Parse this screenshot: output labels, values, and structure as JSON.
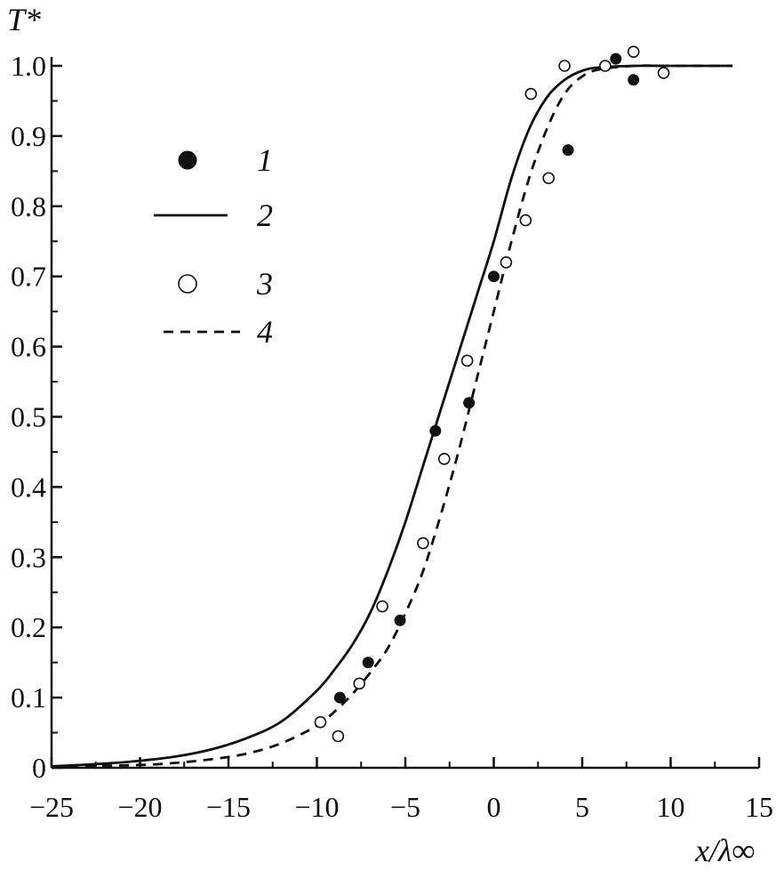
{
  "chart_data": {
    "type": "scatter",
    "title": "",
    "xlabel": "x/λ∞",
    "ylabel": "T*",
    "xlim": [
      -25,
      15
    ],
    "ylim": [
      0,
      1.0
    ],
    "x_ticks": [
      {
        "value": -25,
        "label": "−25"
      },
      {
        "value": -20,
        "label": "−20"
      },
      {
        "value": -15,
        "label": "−15"
      },
      {
        "value": -10,
        "label": "−10"
      },
      {
        "value": -5,
        "label": "−5"
      },
      {
        "value": 0,
        "label": "0"
      },
      {
        "value": 5,
        "label": "5"
      },
      {
        "value": 10,
        "label": "10"
      },
      {
        "value": 15,
        "label": "15"
      }
    ],
    "y_ticks": [
      {
        "value": 0,
        "label": "0"
      },
      {
        "value": 0.1,
        "label": "0.1"
      },
      {
        "value": 0.2,
        "label": "0.2"
      },
      {
        "value": 0.3,
        "label": "0.3"
      },
      {
        "value": 0.4,
        "label": "0.4"
      },
      {
        "value": 0.5,
        "label": "0.5"
      },
      {
        "value": 0.6,
        "label": "0.6"
      },
      {
        "value": 0.7,
        "label": "0.7"
      },
      {
        "value": 0.8,
        "label": "0.8"
      },
      {
        "value": 0.9,
        "label": "0.9"
      },
      {
        "value": 1.0,
        "label": "1.0"
      }
    ],
    "grid": false,
    "legend_position": "upper-left",
    "series": [
      {
        "name": "1",
        "style": "filled-circle",
        "color": "#111111",
        "x": [
          -8.7,
          -7.1,
          -5.3,
          -3.3,
          -1.4,
          0.0,
          4.2,
          6.9,
          7.9
        ],
        "y": [
          0.1,
          0.15,
          0.21,
          0.48,
          0.52,
          0.7,
          0.88,
          1.01,
          0.98
        ]
      },
      {
        "name": "2",
        "style": "solid-line",
        "color": "#111111",
        "x": [
          -25,
          -22,
          -20,
          -18,
          -16,
          -14,
          -12,
          -10,
          -9,
          -8,
          -7,
          -6,
          -5,
          -4,
          -3,
          -2,
          -1,
          0,
          1,
          2,
          3,
          4,
          5,
          6,
          8,
          10,
          13.5
        ],
        "y": [
          0.002,
          0.006,
          0.01,
          0.016,
          0.026,
          0.042,
          0.066,
          0.11,
          0.14,
          0.175,
          0.22,
          0.28,
          0.35,
          0.43,
          0.51,
          0.59,
          0.67,
          0.75,
          0.84,
          0.91,
          0.955,
          0.98,
          0.993,
          0.998,
          1.0,
          1.0,
          1.0
        ]
      },
      {
        "name": "3",
        "style": "open-circle",
        "color": "#111111",
        "x": [
          -9.8,
          -8.8,
          -7.6,
          -6.3,
          -4.0,
          -2.8,
          -1.5,
          0.7,
          1.8,
          2.1,
          3.1,
          4.0,
          6.3,
          7.9,
          9.6
        ],
        "y": [
          0.065,
          0.045,
          0.12,
          0.23,
          0.32,
          0.44,
          0.58,
          0.72,
          0.78,
          0.96,
          0.84,
          1.0,
          1.0,
          1.02,
          0.99
        ]
      },
      {
        "name": "4",
        "style": "dashed-line",
        "color": "#111111",
        "x": [
          -25,
          -20,
          -18,
          -16,
          -14,
          -12,
          -10,
          -9,
          -8,
          -7,
          -6,
          -5,
          -4,
          -3,
          -2,
          -1,
          0,
          1,
          2,
          3,
          4,
          5,
          6,
          8,
          10,
          13.5
        ],
        "y": [
          0.001,
          0.004,
          0.007,
          0.012,
          0.02,
          0.035,
          0.06,
          0.08,
          0.105,
          0.135,
          0.17,
          0.22,
          0.28,
          0.36,
          0.45,
          0.55,
          0.65,
          0.75,
          0.84,
          0.91,
          0.96,
          0.985,
          0.995,
          1.0,
          1.0,
          1.0
        ]
      }
    ]
  }
}
